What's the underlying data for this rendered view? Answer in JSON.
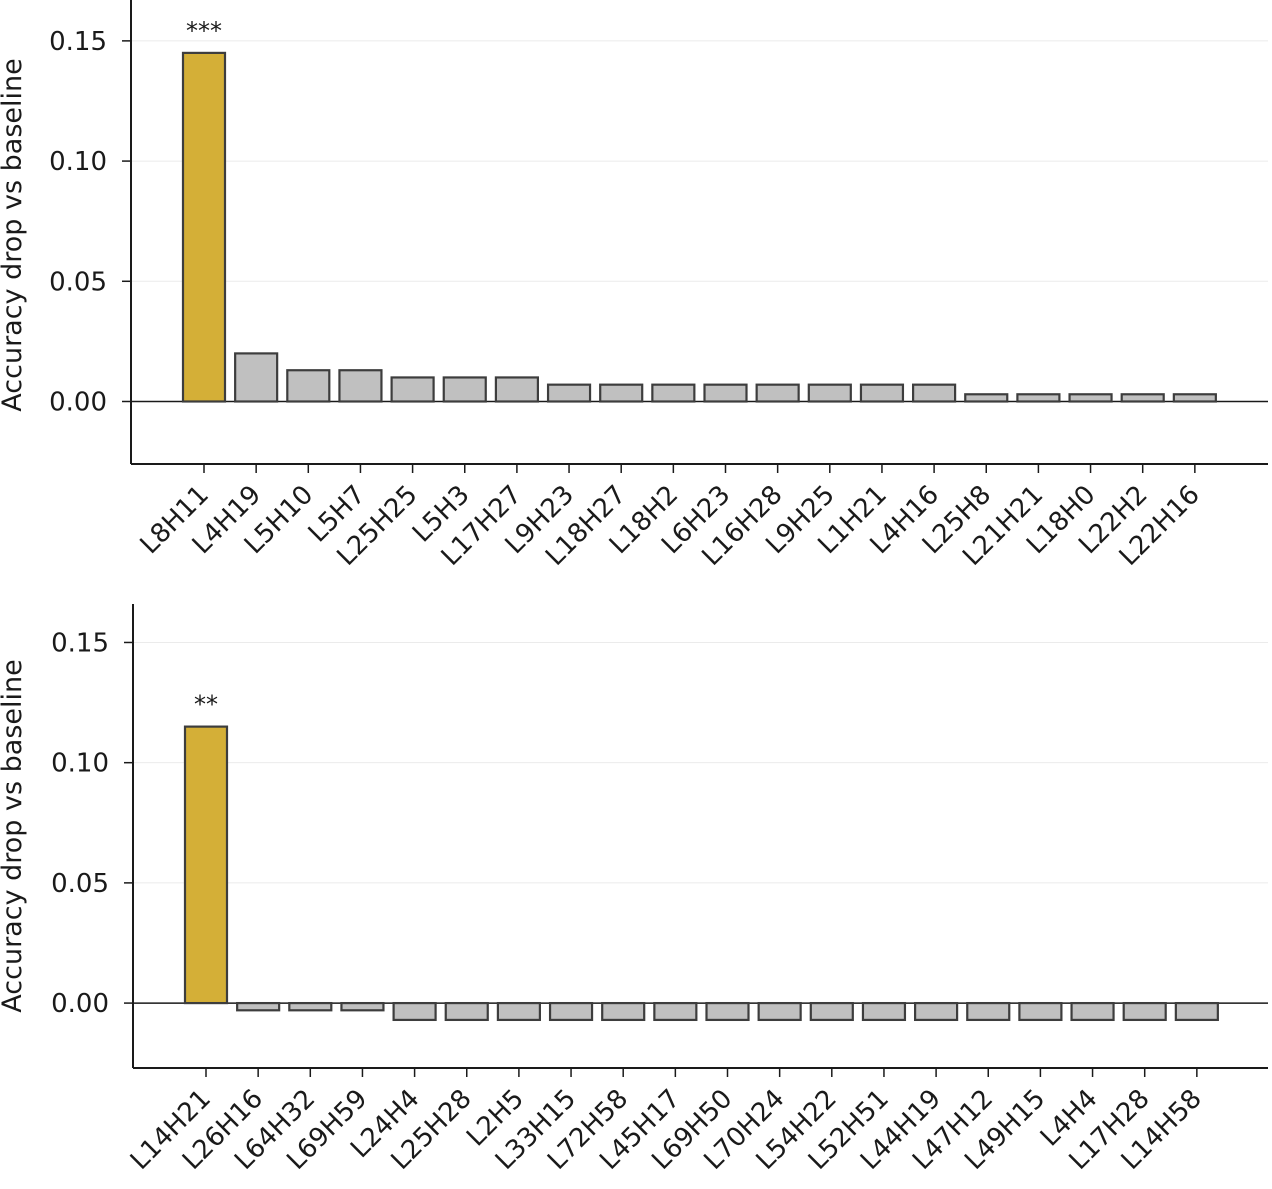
{
  "colors": {
    "highlight": "#d4af37",
    "bar": "#c0c0c0",
    "edge": "#3d3d3d",
    "grid": "#ebebeb",
    "axis": "#1a1a1a"
  },
  "chart_data": [
    {
      "type": "bar",
      "ylabel": "Accuracy drop vs baseline",
      "ylim": [
        -0.026,
        0.167
      ],
      "yticks": [
        0.0,
        0.05,
        0.1,
        0.15
      ],
      "ytick_labels": [
        "0.00",
        "0.05",
        "0.10",
        "0.15"
      ],
      "grid": true,
      "categories": [
        "L8H11",
        "L4H19",
        "L5H10",
        "L5H7",
        "L25H25",
        "L5H3",
        "L17H27",
        "L9H23",
        "L18H27",
        "L18H2",
        "L6H23",
        "L16H28",
        "L9H25",
        "L1H21",
        "L4H16",
        "L25H8",
        "L21H21",
        "L18H0",
        "L22H2",
        "L22H16"
      ],
      "values": [
        0.145,
        0.02,
        0.013,
        0.013,
        0.01,
        0.01,
        0.01,
        0.007,
        0.007,
        0.007,
        0.007,
        0.007,
        0.007,
        0.007,
        0.007,
        0.003,
        0.003,
        0.003,
        0.003,
        0.003
      ],
      "highlight": [
        0
      ],
      "annotations": [
        {
          "index": 0,
          "text": "***"
        }
      ]
    },
    {
      "type": "bar",
      "ylabel": "Accuracy drop vs baseline",
      "ylim": [
        -0.027,
        0.166
      ],
      "yticks": [
        0.0,
        0.05,
        0.1,
        0.15
      ],
      "ytick_labels": [
        "0.00",
        "0.05",
        "0.10",
        "0.15"
      ],
      "grid": true,
      "categories": [
        "L14H21",
        "L26H16",
        "L64H32",
        "L69H59",
        "L24H4",
        "L25H28",
        "L2H5",
        "L33H15",
        "L72H58",
        "L45H17",
        "L69H50",
        "L70H24",
        "L54H22",
        "L52H51",
        "L44H19",
        "L47H12",
        "L49H15",
        "L4H4",
        "L17H28",
        "L14H58"
      ],
      "values": [
        0.115,
        -0.003,
        -0.003,
        -0.003,
        -0.007,
        -0.007,
        -0.007,
        -0.007,
        -0.007,
        -0.007,
        -0.007,
        -0.007,
        -0.007,
        -0.007,
        -0.007,
        -0.007,
        -0.007,
        -0.007,
        -0.007,
        -0.007
      ],
      "highlight": [
        0
      ],
      "annotations": [
        {
          "index": 0,
          "text": "**"
        }
      ]
    }
  ]
}
